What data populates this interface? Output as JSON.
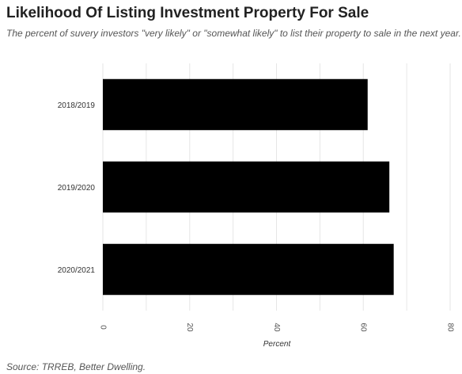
{
  "chart_data": {
    "type": "bar",
    "orientation": "horizontal",
    "title": "Likelihood Of Listing Investment Property For Sale",
    "subtitle": "The percent of suvery investors \"very likely\" or \"somewhat likely\" to list their property to sale in the next year.",
    "categories": [
      "2018/2019",
      "2019/2020",
      "2020/2021"
    ],
    "values": [
      61,
      66,
      67
    ],
    "xlabel": "Percent",
    "ylabel": "",
    "xlim": [
      0,
      80
    ],
    "xticks": [
      "0",
      "20",
      "40",
      "60",
      "80"
    ],
    "tick_label_rotation": "vertical",
    "grid": true,
    "bar_color": "#000000",
    "grid_color": "#e6e6e6",
    "source": "Source: TRREB, Better Dwelling."
  }
}
